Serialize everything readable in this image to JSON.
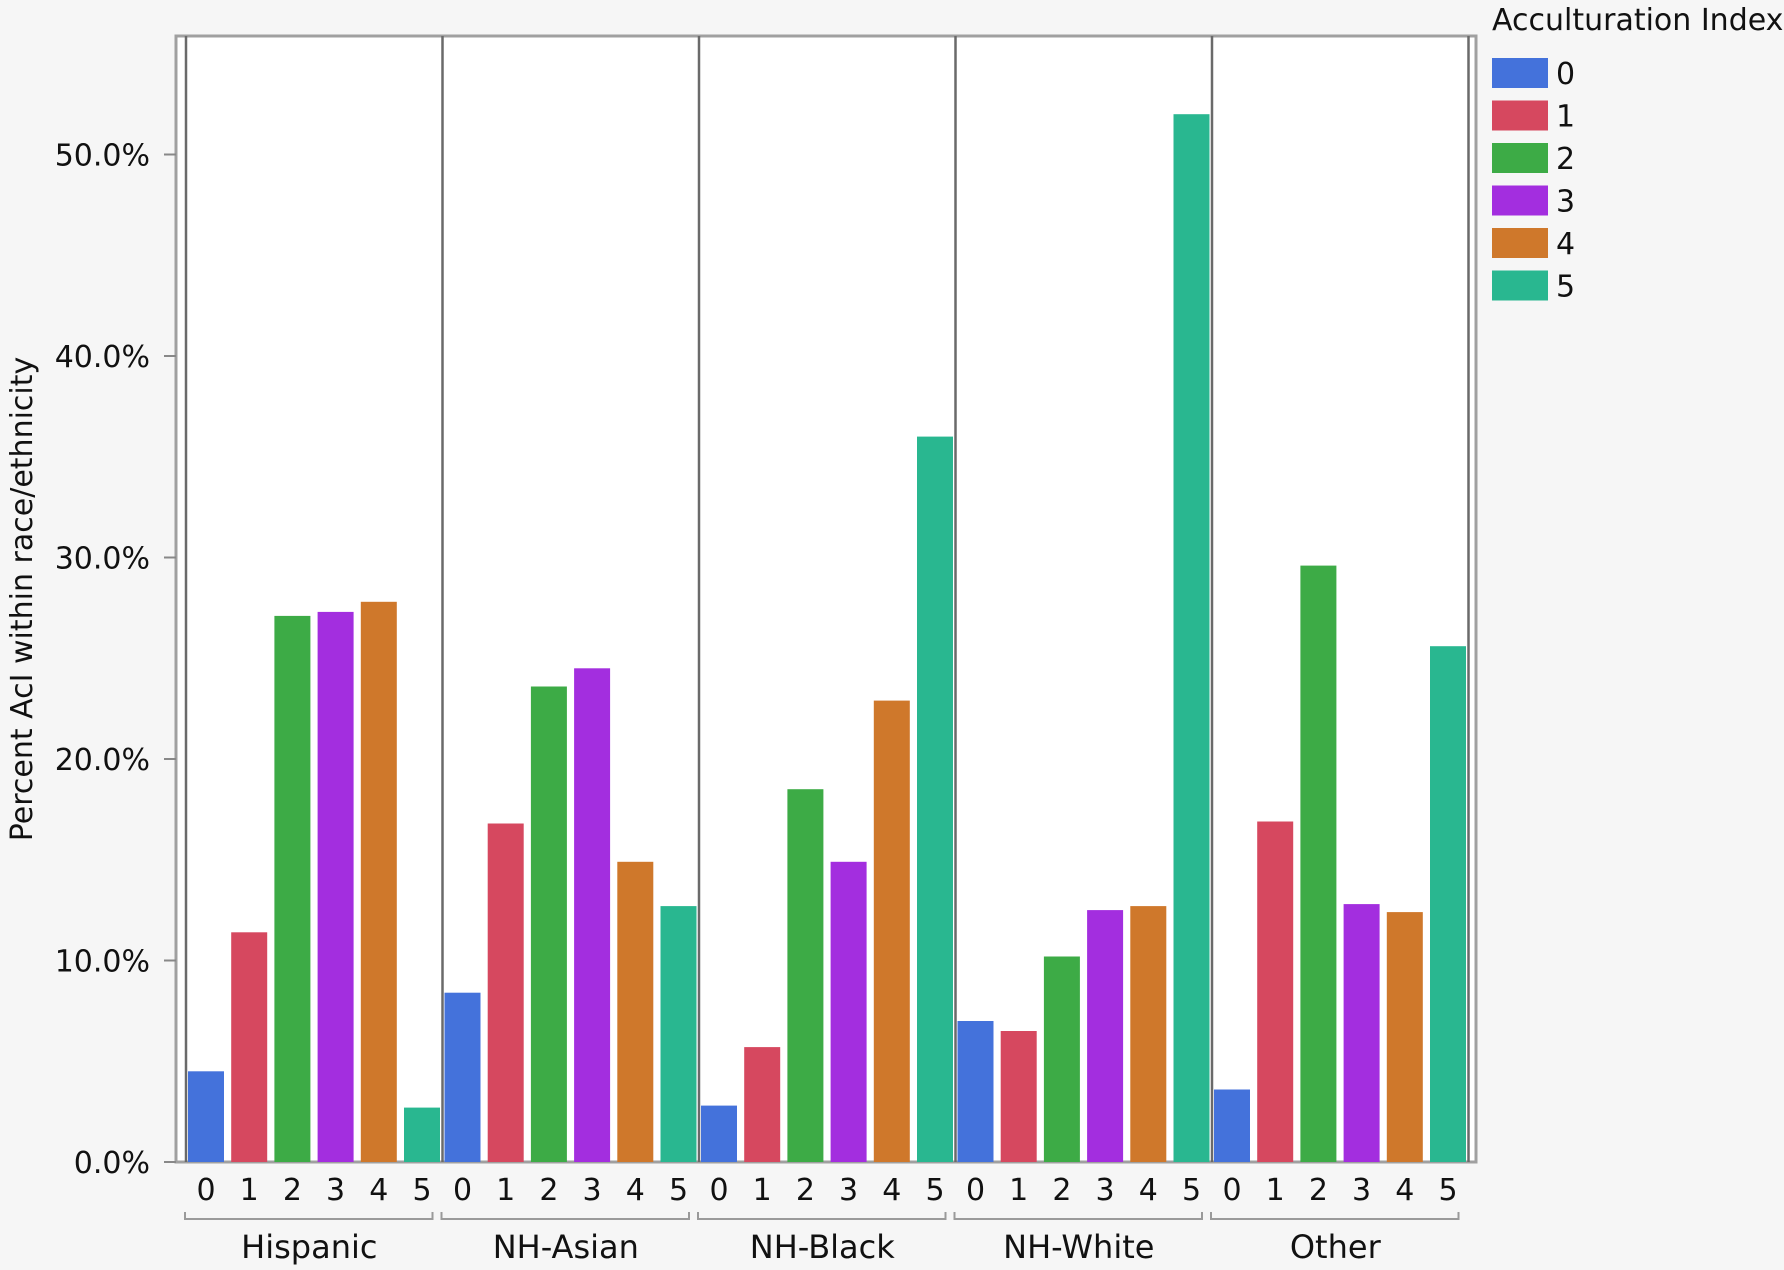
{
  "chart_data": {
    "type": "bar",
    "ylabel": "Percent AcI within race/ethnicity",
    "ylim": [
      0,
      56
    ],
    "yticks": [
      "0.0%",
      "10.0%",
      "20.0%",
      "30.0%",
      "40.0%",
      "50.0%"
    ],
    "ytick_values": [
      0,
      10,
      20,
      30,
      40,
      50
    ],
    "groups": [
      "Hispanic",
      "NH-Asian",
      "NH-Black",
      "NH-White",
      "Other"
    ],
    "categories": [
      "0",
      "1",
      "2",
      "3",
      "4",
      "5"
    ],
    "legend": {
      "title": "Acculturation Index",
      "placement": "right",
      "entries": [
        "0",
        "1",
        "2",
        "3",
        "4",
        "5"
      ]
    },
    "colors": [
      "#4472db",
      "#d6485f",
      "#3dab46",
      "#a32edf",
      "#cf782b",
      "#29b790"
    ],
    "values": [
      [
        4.5,
        11.4,
        27.1,
        27.3,
        27.8,
        2.7
      ],
      [
        8.4,
        16.8,
        23.6,
        24.5,
        14.9,
        12.7
      ],
      [
        2.8,
        5.7,
        18.5,
        14.9,
        22.9,
        36.0
      ],
      [
        7.0,
        6.5,
        10.2,
        12.5,
        12.7,
        52.0
      ],
      [
        3.6,
        16.9,
        29.6,
        12.8,
        12.4,
        25.6
      ]
    ],
    "grid": false
  }
}
